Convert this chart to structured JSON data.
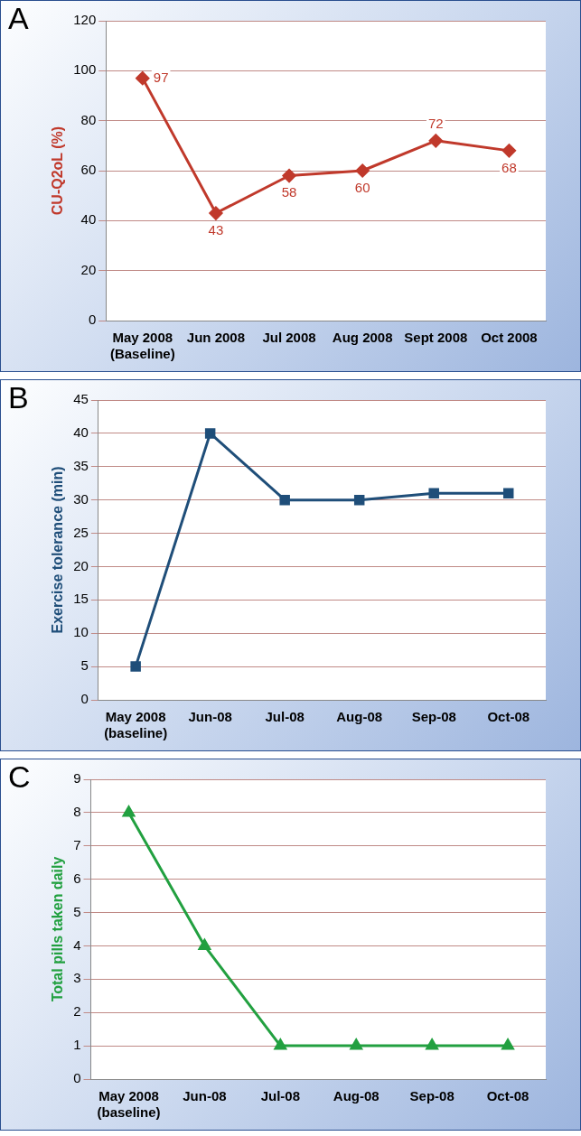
{
  "chart_data": [
    {
      "type": "line",
      "title": "A",
      "ylabel": "CU-Q2oL (%)",
      "categories": [
        "May 2008\n(Baseline)",
        "Jun 2008",
        "Jul 2008",
        "Aug 2008",
        "Sept 2008",
        "Oct 2008"
      ],
      "series": [
        {
          "color": "#c0392b",
          "values": [
            97,
            43,
            58,
            60,
            72,
            68
          ]
        }
      ],
      "ylim": [
        0,
        120
      ],
      "yticks": [
        0,
        20,
        40,
        60,
        80,
        100,
        120
      ],
      "grid": "y",
      "legend": false,
      "marker": "diamond",
      "line_style": "solid",
      "data_labels": true
    },
    {
      "type": "line",
      "title": "B",
      "ylabel": "Exercise tolerance (min)",
      "categories": [
        "May 2008\n(baseline)",
        "Jun-08",
        "Jul-08",
        "Aug-08",
        "Sep-08",
        "Oct-08"
      ],
      "series": [
        {
          "color": "#1f4e79",
          "values": [
            5,
            40,
            30,
            30,
            31,
            31
          ]
        }
      ],
      "ylim": [
        0,
        45
      ],
      "yticks": [
        0,
        5,
        10,
        15,
        20,
        25,
        30,
        35,
        40,
        45
      ],
      "grid": "y",
      "legend": false,
      "marker": "square",
      "line_style": "solid"
    },
    {
      "type": "line",
      "title": "C",
      "ylabel": "Total pills taken daily",
      "categories": [
        "May 2008\n(baseline)",
        "Jun-08",
        "Jul-08",
        "Aug-08",
        "Sep-08",
        "Oct-08"
      ],
      "series": [
        {
          "color": "#22a040",
          "values": [
            8,
            4,
            1,
            1,
            1,
            1
          ]
        }
      ],
      "ylim": [
        0,
        9
      ],
      "yticks": [
        0,
        1,
        2,
        3,
        4,
        5,
        6,
        7,
        8,
        9
      ],
      "grid": "y",
      "legend": false,
      "marker": "triangle",
      "line_style": "solid"
    }
  ]
}
